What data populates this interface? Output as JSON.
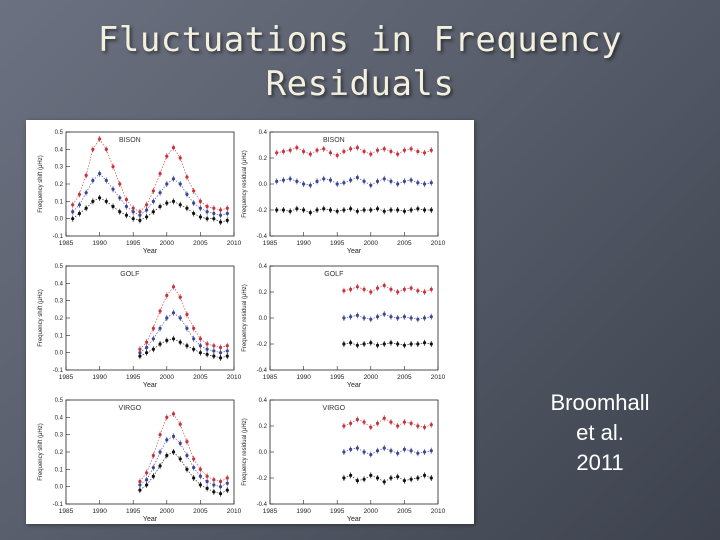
{
  "slide": {
    "title_line1": "Fluctuations in Frequency",
    "title_line2": "Residuals",
    "citation_line1": "Broomhall",
    "citation_line2": "et al.",
    "citation_line3": "2011"
  },
  "colors": {
    "background": "#585e6b",
    "title": "#f4f0e0",
    "series_red": "#c8323c",
    "series_blue": "#3c4696",
    "series_black": "#111111"
  },
  "chart_data": [
    {
      "type": "scatter",
      "panel": "bison-shift",
      "label": "BISON",
      "xlabel": "Year",
      "ylabel": "Frequency shift (μHz)",
      "xlim": [
        1985,
        2010
      ],
      "ylim": [
        -0.1,
        0.5
      ],
      "xticks": [
        1985,
        1990,
        1995,
        2000,
        2005,
        2010
      ],
      "yticks": [
        -0.1,
        0.0,
        0.1,
        0.2,
        0.3,
        0.4,
        0.5
      ],
      "series": [
        {
          "color": "#c8323c",
          "x": [
            1986,
            1987,
            1988,
            1989,
            1990,
            1991,
            1992,
            1993,
            1994,
            1995,
            1996,
            1997,
            1998,
            1999,
            2000,
            2001,
            2002,
            2003,
            2004,
            2005,
            2006,
            2007,
            2008,
            2009
          ],
          "y": [
            0.08,
            0.14,
            0.25,
            0.4,
            0.46,
            0.4,
            0.3,
            0.2,
            0.11,
            0.06,
            0.04,
            0.08,
            0.16,
            0.26,
            0.36,
            0.41,
            0.35,
            0.24,
            0.16,
            0.1,
            0.07,
            0.06,
            0.05,
            0.06
          ]
        },
        {
          "color": "#3c4696",
          "x": [
            1986,
            1987,
            1988,
            1989,
            1990,
            1991,
            1992,
            1993,
            1994,
            1995,
            1996,
            1997,
            1998,
            1999,
            2000,
            2001,
            2002,
            2003,
            2004,
            2005,
            2006,
            2007,
            2008,
            2009
          ],
          "y": [
            0.04,
            0.08,
            0.15,
            0.22,
            0.26,
            0.22,
            0.17,
            0.12,
            0.07,
            0.04,
            0.02,
            0.05,
            0.1,
            0.15,
            0.2,
            0.23,
            0.2,
            0.14,
            0.09,
            0.06,
            0.04,
            0.03,
            0.02,
            0.03
          ]
        },
        {
          "color": "#111111",
          "x": [
            1986,
            1987,
            1988,
            1989,
            1990,
            1991,
            1992,
            1993,
            1994,
            1995,
            1996,
            1997,
            1998,
            1999,
            2000,
            2001,
            2002,
            2003,
            2004,
            2005,
            2006,
            2007,
            2008,
            2009
          ],
          "y": [
            0.0,
            0.03,
            0.06,
            0.1,
            0.12,
            0.1,
            0.07,
            0.04,
            0.02,
            0.0,
            -0.01,
            0.01,
            0.04,
            0.07,
            0.09,
            0.1,
            0.08,
            0.06,
            0.03,
            0.01,
            0.0,
            0.0,
            -0.02,
            -0.01
          ]
        }
      ]
    },
    {
      "type": "scatter",
      "panel": "bison-residual",
      "label": "BISON",
      "xlabel": "Year",
      "ylabel": "Frequency residual (μHz)",
      "xlim": [
        1985,
        2010
      ],
      "ylim": [
        -0.4,
        0.4
      ],
      "xticks": [
        1985,
        1990,
        1995,
        2000,
        2005,
        2010
      ],
      "yticks": [
        -0.4,
        -0.2,
        0.0,
        0.2,
        0.4
      ],
      "series": [
        {
          "color": "#c8323c",
          "x": [
            1986,
            1987,
            1988,
            1989,
            1990,
            1991,
            1992,
            1993,
            1994,
            1995,
            1996,
            1997,
            1998,
            1999,
            2000,
            2001,
            2002,
            2003,
            2004,
            2005,
            2006,
            2007,
            2008,
            2009
          ],
          "y": [
            0.24,
            0.25,
            0.26,
            0.28,
            0.25,
            0.23,
            0.26,
            0.27,
            0.24,
            0.22,
            0.25,
            0.27,
            0.28,
            0.25,
            0.23,
            0.26,
            0.27,
            0.25,
            0.23,
            0.26,
            0.27,
            0.25,
            0.24,
            0.26
          ]
        },
        {
          "color": "#3c4696",
          "x": [
            1986,
            1987,
            1988,
            1989,
            1990,
            1991,
            1992,
            1993,
            1994,
            1995,
            1996,
            1997,
            1998,
            1999,
            2000,
            2001,
            2002,
            2003,
            2004,
            2005,
            2006,
            2007,
            2008,
            2009
          ],
          "y": [
            0.02,
            0.03,
            0.04,
            0.02,
            0.0,
            -0.01,
            0.02,
            0.04,
            0.03,
            0.0,
            0.01,
            0.03,
            0.05,
            0.02,
            -0.01,
            0.02,
            0.04,
            0.02,
            0.0,
            0.02,
            0.03,
            0.01,
            0.0,
            0.01
          ]
        },
        {
          "color": "#111111",
          "x": [
            1986,
            1987,
            1988,
            1989,
            1990,
            1991,
            1992,
            1993,
            1994,
            1995,
            1996,
            1997,
            1998,
            1999,
            2000,
            2001,
            2002,
            2003,
            2004,
            2005,
            2006,
            2007,
            2008,
            2009
          ],
          "y": [
            -0.2,
            -0.2,
            -0.21,
            -0.19,
            -0.2,
            -0.22,
            -0.2,
            -0.19,
            -0.2,
            -0.21,
            -0.2,
            -0.19,
            -0.21,
            -0.2,
            -0.2,
            -0.19,
            -0.21,
            -0.2,
            -0.2,
            -0.21,
            -0.2,
            -0.19,
            -0.2,
            -0.2
          ]
        }
      ]
    },
    {
      "type": "scatter",
      "panel": "golf-shift",
      "label": "GOLF",
      "xlabel": "Year",
      "ylabel": "Frequency shift (μHz)",
      "xlim": [
        1985,
        2010
      ],
      "ylim": [
        -0.1,
        0.5
      ],
      "xticks": [
        1985,
        1990,
        1995,
        2000,
        2005,
        2010
      ],
      "yticks": [
        -0.1,
        0.0,
        0.1,
        0.2,
        0.3,
        0.4,
        0.5
      ],
      "series": [
        {
          "color": "#c8323c",
          "x": [
            1996,
            1997,
            1998,
            1999,
            2000,
            2001,
            2002,
            2003,
            2004,
            2005,
            2006,
            2007,
            2008,
            2009
          ],
          "y": [
            0.02,
            0.06,
            0.14,
            0.24,
            0.33,
            0.38,
            0.32,
            0.22,
            0.14,
            0.08,
            0.05,
            0.04,
            0.03,
            0.04
          ]
        },
        {
          "color": "#3c4696",
          "x": [
            1996,
            1997,
            1998,
            1999,
            2000,
            2001,
            2002,
            2003,
            2004,
            2005,
            2006,
            2007,
            2008,
            2009
          ],
          "y": [
            0.0,
            0.03,
            0.08,
            0.14,
            0.2,
            0.23,
            0.2,
            0.14,
            0.08,
            0.04,
            0.02,
            0.01,
            0.0,
            0.01
          ]
        },
        {
          "color": "#111111",
          "x": [
            1996,
            1997,
            1998,
            1999,
            2000,
            2001,
            2002,
            2003,
            2004,
            2005,
            2006,
            2007,
            2008,
            2009
          ],
          "y": [
            -0.02,
            0.0,
            0.02,
            0.05,
            0.07,
            0.08,
            0.06,
            0.04,
            0.02,
            0.0,
            -0.01,
            -0.02,
            -0.03,
            -0.02
          ]
        }
      ]
    },
    {
      "type": "scatter",
      "panel": "golf-residual",
      "label": "GOLF",
      "xlabel": "Year",
      "ylabel": "Frequency residual (μHz)",
      "xlim": [
        1985,
        2010
      ],
      "ylim": [
        -0.4,
        0.4
      ],
      "xticks": [
        1985,
        1990,
        1995,
        2000,
        2005,
        2010
      ],
      "yticks": [
        -0.4,
        -0.2,
        0.0,
        0.2,
        0.4
      ],
      "series": [
        {
          "color": "#c8323c",
          "x": [
            1996,
            1997,
            1998,
            1999,
            2000,
            2001,
            2002,
            2003,
            2004,
            2005,
            2006,
            2007,
            2008,
            2009
          ],
          "y": [
            0.21,
            0.22,
            0.24,
            0.22,
            0.2,
            0.23,
            0.25,
            0.22,
            0.2,
            0.22,
            0.23,
            0.21,
            0.2,
            0.22
          ]
        },
        {
          "color": "#3c4696",
          "x": [
            1996,
            1997,
            1998,
            1999,
            2000,
            2001,
            2002,
            2003,
            2004,
            2005,
            2006,
            2007,
            2008,
            2009
          ],
          "y": [
            0.0,
            0.01,
            0.02,
            0.0,
            -0.01,
            0.01,
            0.03,
            0.01,
            0.0,
            0.01,
            0.0,
            -0.01,
            0.0,
            0.01
          ]
        },
        {
          "color": "#111111",
          "x": [
            1996,
            1997,
            1998,
            1999,
            2000,
            2001,
            2002,
            2003,
            2004,
            2005,
            2006,
            2007,
            2008,
            2009
          ],
          "y": [
            -0.2,
            -0.19,
            -0.21,
            -0.2,
            -0.19,
            -0.21,
            -0.2,
            -0.19,
            -0.2,
            -0.21,
            -0.2,
            -0.2,
            -0.19,
            -0.2
          ]
        }
      ]
    },
    {
      "type": "scatter",
      "panel": "virgo-shift",
      "label": "VIRGO",
      "xlabel": "Year",
      "ylabel": "Frequency shift (μHz)",
      "xlim": [
        1985,
        2010
      ],
      "ylim": [
        -0.1,
        0.5
      ],
      "xticks": [
        1985,
        1990,
        1995,
        2000,
        2005,
        2010
      ],
      "yticks": [
        -0.1,
        0.0,
        0.1,
        0.2,
        0.3,
        0.4,
        0.5
      ],
      "series": [
        {
          "color": "#c8323c",
          "x": [
            1996,
            1997,
            1998,
            1999,
            2000,
            2001,
            2002,
            2003,
            2004,
            2005,
            2006,
            2007,
            2008,
            2009
          ],
          "y": [
            0.03,
            0.08,
            0.18,
            0.3,
            0.4,
            0.42,
            0.36,
            0.26,
            0.16,
            0.1,
            0.06,
            0.04,
            0.03,
            0.05
          ]
        },
        {
          "color": "#3c4696",
          "x": [
            1996,
            1997,
            1998,
            1999,
            2000,
            2001,
            2002,
            2003,
            2004,
            2005,
            2006,
            2007,
            2008,
            2009
          ],
          "y": [
            0.01,
            0.04,
            0.11,
            0.2,
            0.27,
            0.29,
            0.25,
            0.18,
            0.11,
            0.06,
            0.03,
            0.01,
            0.0,
            0.02
          ]
        },
        {
          "color": "#111111",
          "x": [
            1996,
            1997,
            1998,
            1999,
            2000,
            2001,
            2002,
            2003,
            2004,
            2005,
            2006,
            2007,
            2008,
            2009
          ],
          "y": [
            -0.02,
            0.01,
            0.06,
            0.12,
            0.18,
            0.2,
            0.16,
            0.1,
            0.05,
            0.01,
            -0.01,
            -0.03,
            -0.04,
            -0.02
          ]
        }
      ]
    },
    {
      "type": "scatter",
      "panel": "virgo-residual",
      "label": "VIRGO",
      "xlabel": "Year",
      "ylabel": "Frequency residual (μHz)",
      "xlim": [
        1985,
        2010
      ],
      "ylim": [
        -0.4,
        0.4
      ],
      "xticks": [
        1985,
        1990,
        1995,
        2000,
        2005,
        2010
      ],
      "yticks": [
        -0.4,
        -0.2,
        0.0,
        0.2,
        0.4
      ],
      "series": [
        {
          "color": "#c8323c",
          "x": [
            1996,
            1997,
            1998,
            1999,
            2000,
            2001,
            2002,
            2003,
            2004,
            2005,
            2006,
            2007,
            2008,
            2009
          ],
          "y": [
            0.2,
            0.22,
            0.25,
            0.23,
            0.19,
            0.22,
            0.26,
            0.23,
            0.2,
            0.23,
            0.22,
            0.2,
            0.19,
            0.21
          ]
        },
        {
          "color": "#3c4696",
          "x": [
            1996,
            1997,
            1998,
            1999,
            2000,
            2001,
            2002,
            2003,
            2004,
            2005,
            2006,
            2007,
            2008,
            2009
          ],
          "y": [
            0.0,
            0.02,
            0.03,
            0.0,
            -0.02,
            0.01,
            0.03,
            0.01,
            -0.01,
            0.02,
            0.01,
            -0.01,
            0.0,
            0.01
          ]
        },
        {
          "color": "#111111",
          "x": [
            1996,
            1997,
            1998,
            1999,
            2000,
            2001,
            2002,
            2003,
            2004,
            2005,
            2006,
            2007,
            2008,
            2009
          ],
          "y": [
            -0.2,
            -0.18,
            -0.22,
            -0.21,
            -0.18,
            -0.2,
            -0.23,
            -0.2,
            -0.19,
            -0.22,
            -0.21,
            -0.2,
            -0.18,
            -0.2
          ]
        }
      ]
    }
  ]
}
